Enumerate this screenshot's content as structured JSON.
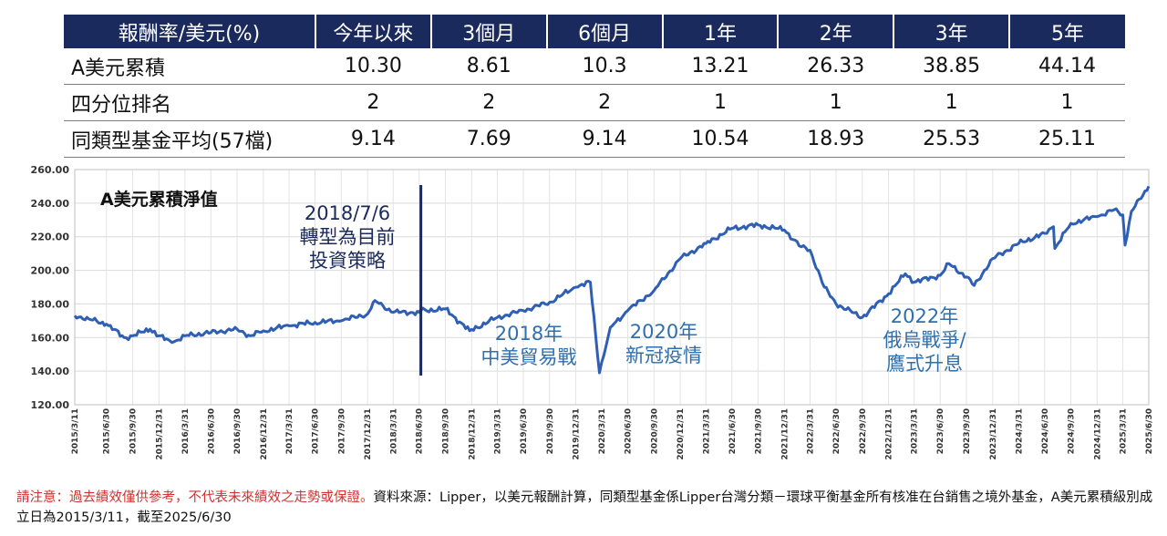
{
  "table": {
    "headers": [
      "報酬率/美元(%)",
      "今年以來",
      "3個月",
      "6個月",
      "1年",
      "2年",
      "3年",
      "5年"
    ],
    "rows": [
      {
        "label": "A美元累積",
        "values": [
          "10.30",
          "8.61",
          "10.3",
          "13.21",
          "26.33",
          "38.85",
          "44.14"
        ]
      },
      {
        "label": "四分位排名",
        "values": [
          "2",
          "2",
          "2",
          "1",
          "1",
          "1",
          "1"
        ]
      },
      {
        "label": "同類型基金平均(57檔)",
        "values": [
          "9.14",
          "7.69",
          "9.14",
          "10.54",
          "18.93",
          "25.53",
          "25.11"
        ]
      }
    ]
  },
  "chart_data": {
    "type": "line",
    "title": "A美元累積淨值",
    "ylim": [
      120,
      260
    ],
    "yticks": [
      "120.00",
      "140.00",
      "160.00",
      "180.00",
      "200.00",
      "220.00",
      "240.00",
      "260.00"
    ],
    "xticks": [
      "2015/3/11",
      "2015/6/30",
      "2015/9/30",
      "2015/12/31",
      "2016/3/31",
      "2016/6/30",
      "2016/9/30",
      "2016/12/31",
      "2017/3/31",
      "2017/6/30",
      "2017/9/30",
      "2017/12/31",
      "2018/3/31",
      "2018/6/30",
      "2018/9/30",
      "2018/12/31",
      "2019/3/31",
      "2019/6/30",
      "2019/9/30",
      "2019/12/31",
      "2020/3/31",
      "2020/6/30",
      "2020/9/30",
      "2020/12/31",
      "2021/3/31",
      "2021/6/30",
      "2021/9/30",
      "2021/12/31",
      "2022/3/31",
      "2022/6/30",
      "2022/9/30",
      "2022/12/31",
      "2023/3/31",
      "2023/6/30",
      "2023/9/30",
      "2023/12/31",
      "2024/3/31",
      "2024/6/30",
      "2024/9/30",
      "2024/12/31",
      "2025/3/31",
      "2025/6/30"
    ],
    "series": [
      {
        "color": "#2f5fb5",
        "points": [
          [
            "2015/3/11",
            173
          ],
          [
            "2015/4/30",
            171
          ],
          [
            "2015/6/30",
            168
          ],
          [
            "2015/8/31",
            160
          ],
          [
            "2015/9/30",
            161
          ],
          [
            "2015/11/30",
            165
          ],
          [
            "2015/12/31",
            161
          ],
          [
            "2016/2/15",
            157
          ],
          [
            "2016/3/31",
            161
          ],
          [
            "2016/6/30",
            163
          ],
          [
            "2016/9/30",
            165
          ],
          [
            "2016/11/15",
            161
          ],
          [
            "2016/12/31",
            164
          ],
          [
            "2017/3/31",
            167
          ],
          [
            "2017/6/30",
            169
          ],
          [
            "2017/9/30",
            170
          ],
          [
            "2017/12/31",
            174
          ],
          [
            "2018/1/26",
            182
          ],
          [
            "2018/3/31",
            175
          ],
          [
            "2018/6/30",
            175
          ],
          [
            "2018/7/6",
            176
          ],
          [
            "2018/9/30",
            177
          ],
          [
            "2018/12/24",
            164
          ],
          [
            "2019/3/31",
            172
          ],
          [
            "2019/6/30",
            176
          ],
          [
            "2019/9/30",
            181
          ],
          [
            "2019/12/31",
            190
          ],
          [
            "2020/2/20",
            193
          ],
          [
            "2020/3/23",
            139
          ],
          [
            "2020/4/30",
            166
          ],
          [
            "2020/6/30",
            176
          ],
          [
            "2020/9/30",
            188
          ],
          [
            "2020/12/31",
            207
          ],
          [
            "2021/3/31",
            216
          ],
          [
            "2021/6/30",
            225
          ],
          [
            "2021/9/30",
            227
          ],
          [
            "2021/12/31",
            224
          ],
          [
            "2022/2/28",
            214
          ],
          [
            "2022/3/31",
            212
          ],
          [
            "2022/5/20",
            190
          ],
          [
            "2022/6/30",
            180
          ],
          [
            "2022/9/30",
            172
          ],
          [
            "2022/12/31",
            186
          ],
          [
            "2023/2/28",
            198
          ],
          [
            "2023/3/31",
            193
          ],
          [
            "2023/6/30",
            197
          ],
          [
            "2023/7/31",
            204
          ],
          [
            "2023/9/30",
            196
          ],
          [
            "2023/10/27",
            191
          ],
          [
            "2023/12/31",
            207
          ],
          [
            "2024/3/31",
            216
          ],
          [
            "2024/6/30",
            222
          ],
          [
            "2024/7/31",
            226
          ],
          [
            "2024/8/5",
            213
          ],
          [
            "2024/9/30",
            228
          ],
          [
            "2024/12/31",
            232
          ],
          [
            "2025/2/28",
            236
          ],
          [
            "2025/3/31",
            233
          ],
          [
            "2025/4/8",
            215
          ],
          [
            "2025/4/30",
            235
          ],
          [
            "2025/6/30",
            250
          ]
        ]
      }
    ],
    "annotations": [
      {
        "date": "2018/7/6",
        "text": [
          "2018/7/6",
          "轉型為目前",
          "投資策略"
        ],
        "color": "#1b2a5c",
        "vline": true
      },
      {
        "date": "2018/12/31",
        "text": [
          "2018年",
          "中美貿易戰"
        ],
        "color": "#2f6fad"
      },
      {
        "date": "2020/6/30",
        "text": [
          "2020年",
          "新冠疫情"
        ],
        "color": "#2f6fad"
      },
      {
        "date": "2022/12/31",
        "text": [
          "2022年",
          "俄烏戰爭/",
          "鷹式升息"
        ],
        "color": "#2f6fad"
      }
    ],
    "grid": true
  },
  "footnote": {
    "warning": "請注意：過去績效僅供參考，不代表未來績效之走勢或保證。",
    "source": "資料來源：Lipper，以美元報酬計算，同類型基金係Lipper台灣分類－環球平衡基金所有核准在台銷售之境外基金，A美元累積級別成立日為2015/3/11，截至2025/6/30"
  }
}
